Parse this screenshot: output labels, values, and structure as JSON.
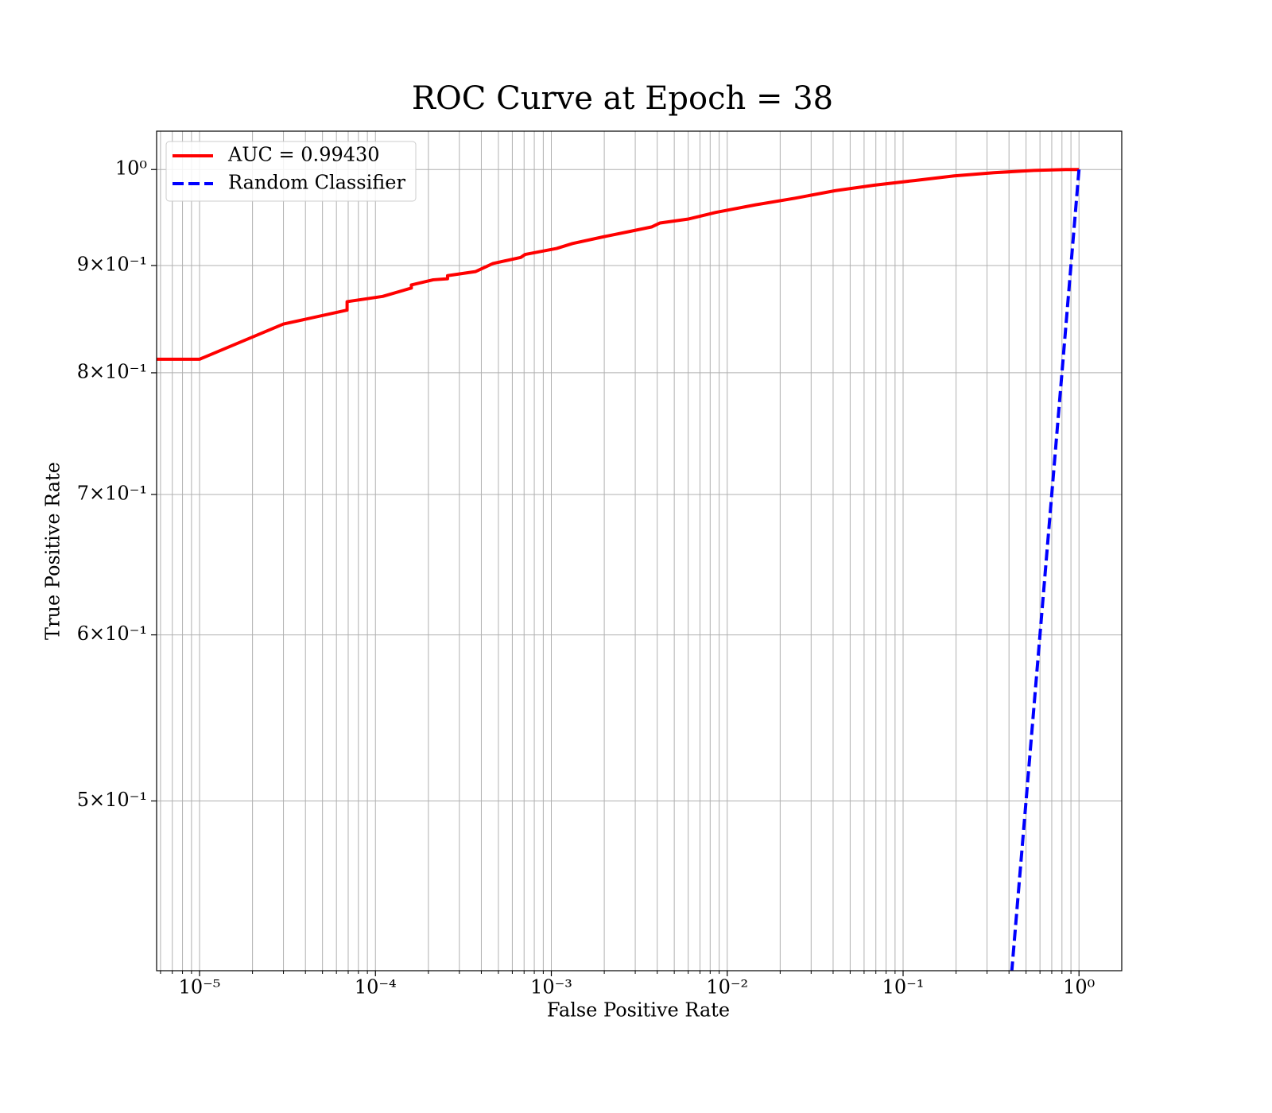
{
  "chart_data": {
    "type": "line",
    "title": "ROC Curve at Epoch = 38",
    "x_label": "False Positive Rate",
    "y_label": "True Positive Rate",
    "xscale": "log",
    "yscale": "log",
    "grid": true,
    "legend_position": "upper left",
    "xlim": [
      5.7e-06,
      1.75
    ],
    "ylim": [
      0.415,
      1.043
    ],
    "xticks": [
      {
        "value": 1e-05,
        "label": "10⁻⁵"
      },
      {
        "value": 0.0001,
        "label": "10⁻⁴"
      },
      {
        "value": 0.001,
        "label": "10⁻³"
      },
      {
        "value": 0.01,
        "label": "10⁻²"
      },
      {
        "value": 0.1,
        "label": "10⁻¹"
      },
      {
        "value": 1,
        "label": "10⁰"
      }
    ],
    "xticks_minor": [
      6e-06,
      7e-06,
      8e-06,
      9e-06,
      2e-05,
      3e-05,
      4e-05,
      5e-05,
      6e-05,
      7e-05,
      8e-05,
      9e-05,
      0.0002,
      0.0003,
      0.0004,
      0.0005,
      0.0006,
      0.0007,
      0.0008,
      0.0009,
      0.002,
      0.003,
      0.004,
      0.005,
      0.006,
      0.007,
      0.008,
      0.009,
      0.02,
      0.03,
      0.04,
      0.05,
      0.06,
      0.07,
      0.08,
      0.09,
      0.2,
      0.3,
      0.4,
      0.5,
      0.6,
      0.7,
      0.8,
      0.9
    ],
    "yticks": [
      {
        "value": 0.5,
        "label": "5×10⁻¹"
      },
      {
        "value": 0.6,
        "label": "6×10⁻¹"
      },
      {
        "value": 0.7,
        "label": "7×10⁻¹"
      },
      {
        "value": 0.8,
        "label": "8×10⁻¹"
      },
      {
        "value": 0.9,
        "label": "9×10⁻¹"
      },
      {
        "value": 1,
        "label": "10⁰"
      }
    ],
    "series": [
      {
        "name": "AUC = 0.99430",
        "color": "#ff0000",
        "linestyle": "-",
        "x": [
          5.7e-06,
          1e-05,
          3e-05,
          6.9e-05,
          6.9e-05,
          0.00011,
          0.00016,
          0.00016,
          0.000213,
          0.000257,
          0.000257,
          0.00037,
          0.000466,
          0.00067,
          0.00071,
          0.00107,
          0.00132,
          0.002,
          0.00274,
          0.00373,
          0.00415,
          0.00597,
          0.0086,
          0.0145,
          0.0243,
          0.041,
          0.0689,
          0.116,
          0.195,
          0.328,
          0.552,
          0.84,
          1.0
        ],
        "values": [
          0.812,
          0.812,
          0.844,
          0.857,
          0.865,
          0.87,
          0.878,
          0.881,
          0.886,
          0.887,
          0.89,
          0.894,
          0.902,
          0.908,
          0.911,
          0.917,
          0.922,
          0.929,
          0.934,
          0.939,
          0.943,
          0.947,
          0.954,
          0.962,
          0.969,
          0.977,
          0.983,
          0.988,
          0.993,
          0.9965,
          0.999,
          1.0,
          1.0
        ]
      },
      {
        "name": "Random Classifier",
        "color": "#0000ff",
        "linestyle": "--",
        "x": [
          0.4,
          1.0
        ],
        "values": [
          0.4,
          1.0
        ]
      }
    ]
  }
}
